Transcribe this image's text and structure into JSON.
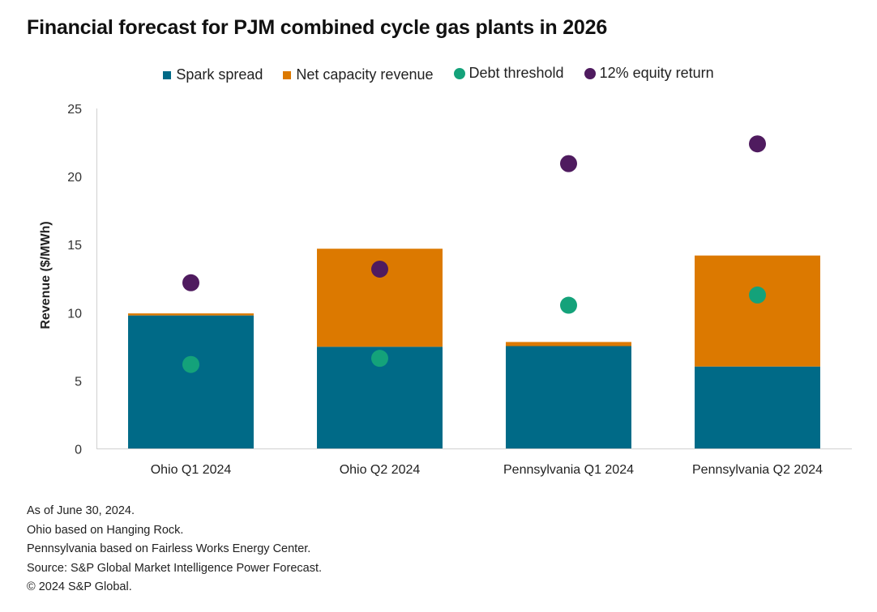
{
  "chart_data": {
    "type": "bar",
    "stacked": true,
    "title": "Financial forecast for PJM combined cycle gas plants in 2026",
    "xlabel": "",
    "ylabel": "Revenue ($/MWh)",
    "ylim": [
      0,
      25
    ],
    "yticks": [
      0,
      5,
      10,
      15,
      20,
      25
    ],
    "grid": false,
    "legend_position": "top-center",
    "categories": [
      "Ohio Q1 2024",
      "Ohio Q2 2024",
      "Pennsylvania Q1 2024",
      "Pennsylvania Q2 2024"
    ],
    "series": [
      {
        "name": "Spark spread",
        "kind": "bar",
        "color": "#006a87",
        "values": [
          9.8,
          7.5,
          7.55,
          6.05
        ]
      },
      {
        "name": "Net capacity revenue",
        "kind": "bar",
        "color": "#dc7900",
        "values": [
          0.15,
          7.2,
          0.3,
          8.15
        ]
      },
      {
        "name": "Debt threshold",
        "kind": "marker",
        "color": "#14a27a",
        "values": [
          6.2,
          6.65,
          10.55,
          11.3
        ]
      },
      {
        "name": "12% equity return",
        "kind": "marker",
        "color": "#4f1b5f",
        "values": [
          12.2,
          13.2,
          20.95,
          22.4
        ]
      }
    ]
  },
  "footer": [
    "As of June 30, 2024.",
    "Ohio based on Hanging Rock.",
    "Pennsylvania based on Fairless Works Energy Center.",
    "Source: S&P Global Market Intelligence Power Forecast.",
    "© 2024 S&P Global."
  ]
}
